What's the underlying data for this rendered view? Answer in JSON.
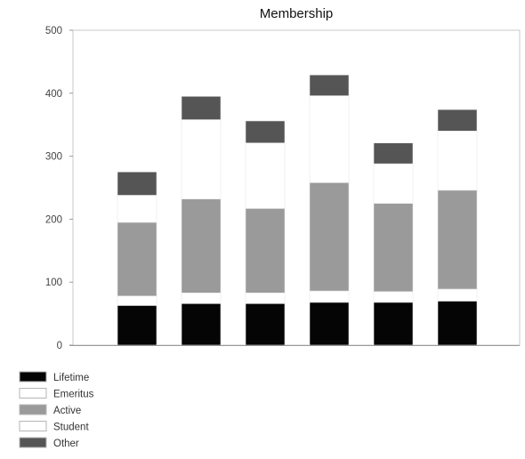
{
  "chart_data": {
    "type": "bar",
    "stacked": true,
    "title": "Membership",
    "xlabel": "",
    "ylabel": "",
    "categories": [
      "",
      "",
      "",
      "",
      "",
      ""
    ],
    "ylim": [
      0,
      500
    ],
    "yticks": [
      0,
      100,
      200,
      300,
      400,
      500
    ],
    "grid": false,
    "legend_position": "bottom-left",
    "series": [
      {
        "name": "Lifetime",
        "color": "#050505",
        "values": [
          63,
          66,
          66,
          68,
          68,
          70
        ]
      },
      {
        "name": "Emeritus",
        "color": "#ffffff",
        "values": [
          15,
          17,
          17,
          18,
          17,
          19
        ]
      },
      {
        "name": "Active",
        "color": "#9a9a9a",
        "values": [
          117,
          149,
          134,
          172,
          140,
          157
        ]
      },
      {
        "name": "Student",
        "color": "#ffffff",
        "values": [
          43,
          126,
          104,
          138,
          63,
          94
        ]
      },
      {
        "name": "Other",
        "color": "#555555",
        "values": [
          37,
          37,
          35,
          33,
          33,
          34
        ]
      }
    ]
  }
}
